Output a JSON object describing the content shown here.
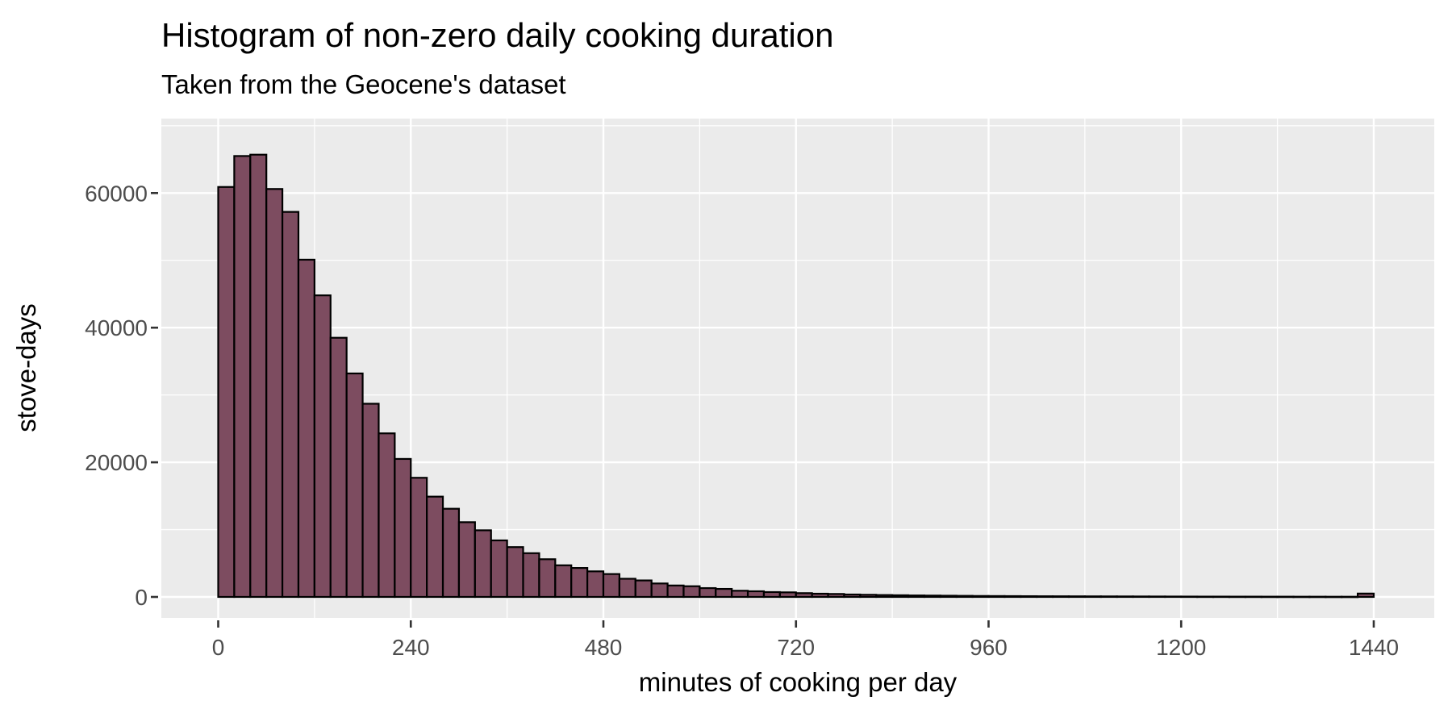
{
  "header": {
    "title": "Histogram of non-zero daily cooking duration",
    "subtitle": "Taken from the Geocene's dataset"
  },
  "chart_data": {
    "type": "bar",
    "subtype": "histogram",
    "title": "Histogram of non-zero daily cooking duration",
    "subtitle": "Taken from the Geocene's dataset",
    "xlabel": "minutes of cooking per day",
    "ylabel": "stove-days",
    "bin_width": 20,
    "x_start": 0,
    "xlim": [
      0,
      1440
    ],
    "ylim": [
      0,
      70800
    ],
    "x_ticks": [
      0,
      240,
      480,
      720,
      960,
      1200,
      1440
    ],
    "y_ticks": [
      0,
      20000,
      40000,
      60000
    ],
    "x_minor_ticks": [
      120,
      360,
      600,
      840,
      1080,
      1320
    ],
    "y_minor_ticks": [
      10000,
      30000,
      50000,
      70000
    ],
    "grid": "on",
    "legend_position": "none",
    "values": [
      60900,
      65500,
      65700,
      60600,
      57200,
      50100,
      44800,
      38500,
      33200,
      28700,
      24300,
      20500,
      17700,
      14900,
      13100,
      11100,
      9900,
      8400,
      7400,
      6500,
      5600,
      4700,
      4300,
      3800,
      3400,
      2700,
      2450,
      2000,
      1700,
      1590,
      1310,
      1190,
      920,
      840,
      720,
      680,
      560,
      480,
      440,
      360,
      320,
      280,
      250,
      220,
      200,
      180,
      160,
      140,
      130,
      120,
      110,
      100,
      95,
      90,
      85,
      80,
      75,
      70,
      65,
      60,
      55,
      50,
      50,
      45,
      45,
      40,
      40,
      35,
      35,
      30,
      30,
      500
    ],
    "colors": {
      "bar_fill": "#7D4C60",
      "bar_stroke": "#000000",
      "panel_background": "#EBEBEB",
      "gridline_major": "#FFFFFF",
      "gridline_minor": "#FFFFFF",
      "tick_mark": "#333333",
      "axis_text": "#4D4D4D",
      "title_text": "#000000"
    }
  }
}
